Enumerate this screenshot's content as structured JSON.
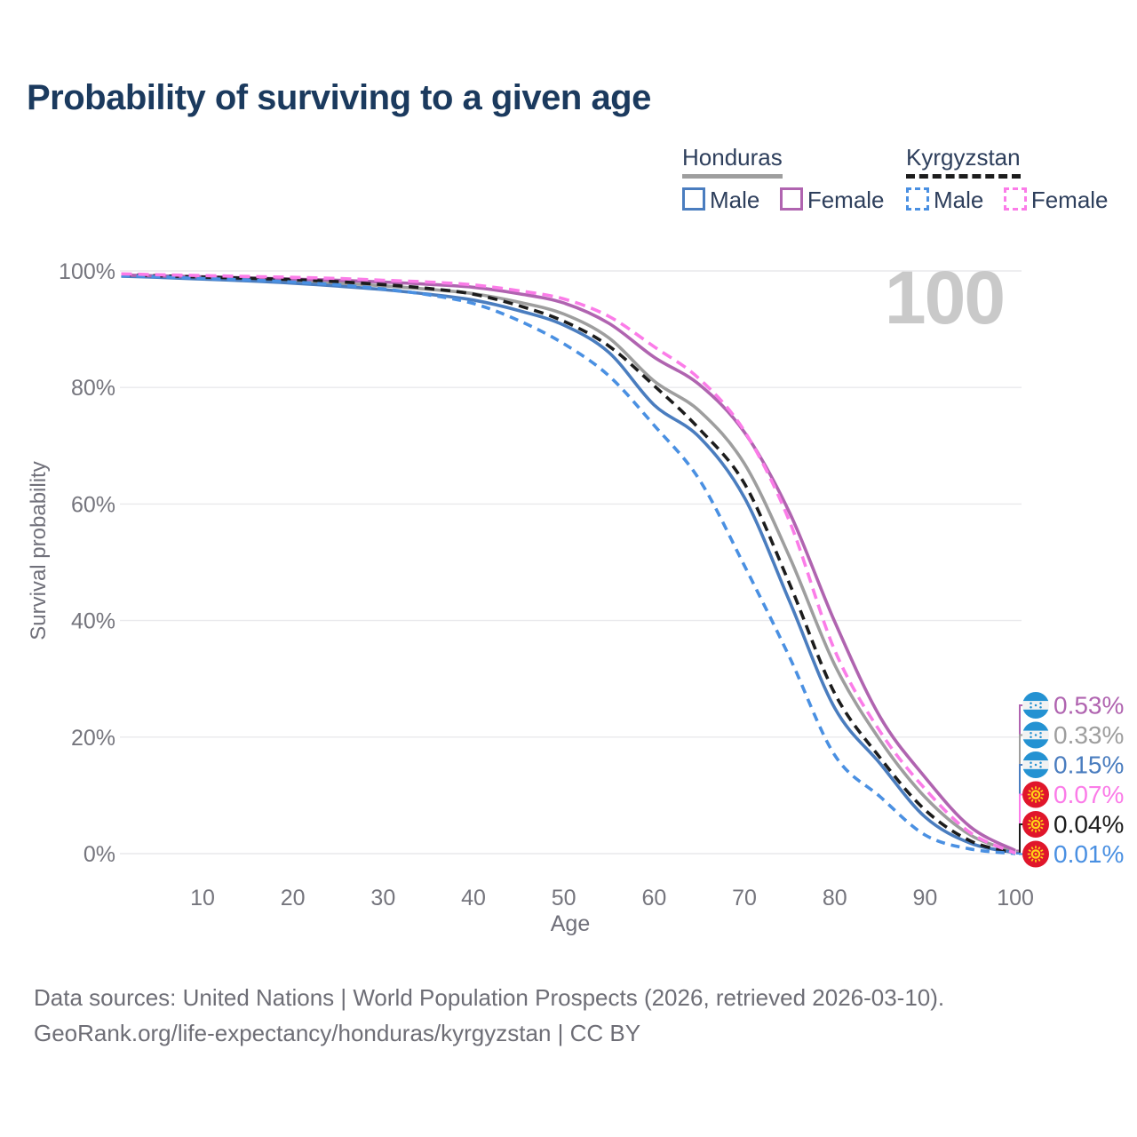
{
  "title": "Probability of surviving to a given age",
  "watermark": "100",
  "legend": {
    "groups": [
      {
        "name": "Honduras",
        "line_style": "solid",
        "line_color": "#9e9e9e",
        "items": [
          {
            "label": "Male",
            "color": "#4a7dbf",
            "dashed": false
          },
          {
            "label": "Female",
            "color": "#b064b0",
            "dashed": false
          }
        ]
      },
      {
        "name": "Kyrgyzstan",
        "line_style": "dashed",
        "line_color": "#1c1c1c",
        "items": [
          {
            "label": "Male",
            "color": "#4a90e2",
            "dashed": true
          },
          {
            "label": "Female",
            "color": "#fb7ce8",
            "dashed": true
          }
        ]
      }
    ]
  },
  "chart_data": {
    "type": "line",
    "title": "Probability of surviving to a given age",
    "xlabel": "Age",
    "ylabel": "Survival probability",
    "xlim": [
      1,
      100
    ],
    "ylim": [
      0,
      100
    ],
    "grid": "horizontal",
    "x_ticks": [
      10,
      20,
      30,
      40,
      50,
      60,
      70,
      80,
      90,
      100
    ],
    "y_ticks": [
      "0%",
      "20%",
      "40%",
      "60%",
      "80%",
      "100%"
    ],
    "y_tick_values": [
      0,
      20,
      40,
      60,
      80,
      100
    ],
    "x": [
      1,
      5,
      10,
      15,
      20,
      25,
      30,
      35,
      40,
      45,
      50,
      55,
      60,
      65,
      70,
      75,
      80,
      85,
      90,
      95,
      100
    ],
    "series": [
      {
        "name": "Honduras Male",
        "country": "Honduras",
        "sex": "Male",
        "color": "#4a7dbf",
        "dash": null,
        "flag": "honduras",
        "end_label": "0.15%",
        "values": [
          99.1,
          98.9,
          98.6,
          98.3,
          97.9,
          97.4,
          96.8,
          96.0,
          95.0,
          93.2,
          90.7,
          86.0,
          77.0,
          71.5,
          61.1,
          43.3,
          25.0,
          15.5,
          6.3,
          1.8,
          0.15
        ]
      },
      {
        "name": "Honduras Female",
        "country": "Honduras",
        "sex": "Female",
        "color": "#b064b0",
        "dash": null,
        "flag": "honduras",
        "end_label": "0.53%",
        "values": [
          99.3,
          99.15,
          99.0,
          98.8,
          98.6,
          98.4,
          98.1,
          97.7,
          97.2,
          96.1,
          94.5,
          91.0,
          85.2,
          80.5,
          72.3,
          58.5,
          39.8,
          23.5,
          13.1,
          4.6,
          0.53
        ]
      },
      {
        "name": "Honduras Both sexes",
        "country": "Honduras",
        "sex": "Both",
        "color": "#9e9e9e",
        "dash": null,
        "flag": "honduras",
        "end_label": "0.33%",
        "values": [
          99.2,
          99.0,
          98.8,
          98.55,
          98.25,
          97.9,
          97.45,
          96.85,
          96.1,
          94.65,
          92.6,
          88.5,
          81.1,
          76.0,
          66.9,
          50.9,
          32.4,
          19.5,
          9.7,
          3.2,
          0.33
        ]
      },
      {
        "name": "Kyrgyzstan Male",
        "country": "Kyrgyzstan",
        "sex": "Male",
        "color": "#4a90e2",
        "dash": [
          10,
          7
        ],
        "flag": "kyrgyzstan",
        "end_label": "0.01%",
        "values": [
          99.2,
          99.0,
          98.7,
          98.45,
          98.1,
          97.6,
          96.9,
          95.9,
          94.4,
          91.5,
          87.5,
          82.0,
          73.5,
          64.2,
          49.4,
          33.7,
          16.9,
          9.8,
          3.2,
          0.8,
          0.01
        ]
      },
      {
        "name": "Kyrgyzstan Female",
        "country": "Kyrgyzstan",
        "sex": "Female",
        "color": "#fb7ce8",
        "dash": [
          12,
          7
        ],
        "flag": "kyrgyzstan",
        "end_label": "0.07%",
        "values": [
          99.5,
          99.35,
          99.2,
          99.05,
          98.9,
          98.7,
          98.4,
          98.1,
          97.6,
          96.6,
          95.2,
          92.2,
          87.0,
          81.5,
          72.5,
          57.0,
          34.9,
          21.0,
          11.1,
          3.6,
          0.07
        ]
      },
      {
        "name": "Kyrgyzstan Both sexes",
        "country": "Kyrgyzstan",
        "sex": "Both",
        "color": "#1c1c1c",
        "dash": [
          11,
          7
        ],
        "flag": "kyrgyzstan",
        "end_label": "0.04%",
        "values": [
          99.35,
          99.18,
          98.95,
          98.75,
          98.5,
          98.15,
          97.65,
          97.0,
          96.0,
          94.05,
          91.35,
          87.1,
          80.3,
          72.9,
          63.5,
          46.3,
          27.5,
          16.5,
          7.5,
          2.2,
          0.04
        ]
      }
    ]
  },
  "flags": {
    "honduras": {
      "band": "#2492d2",
      "middle": "#f2f2f2",
      "stars": "#2492d2"
    },
    "kyrgyzstan": {
      "field": "#e0162b",
      "sun": "#ffd117"
    }
  },
  "colors": {
    "title_text": "#1b3a5e",
    "legend_text": "#2e3f5c",
    "axis_text": "#75757d",
    "grid": "#e9e9ec",
    "watermark": "#c9c9c9",
    "footer_text": "#6e6e76"
  },
  "footer": {
    "line1": "Data sources: United Nations | World Population Prospects (2026, retrieved 2026-03-10).",
    "line2": "GeoRank.org/life-expectancy/honduras/kyrgyzstan | CC BY"
  }
}
